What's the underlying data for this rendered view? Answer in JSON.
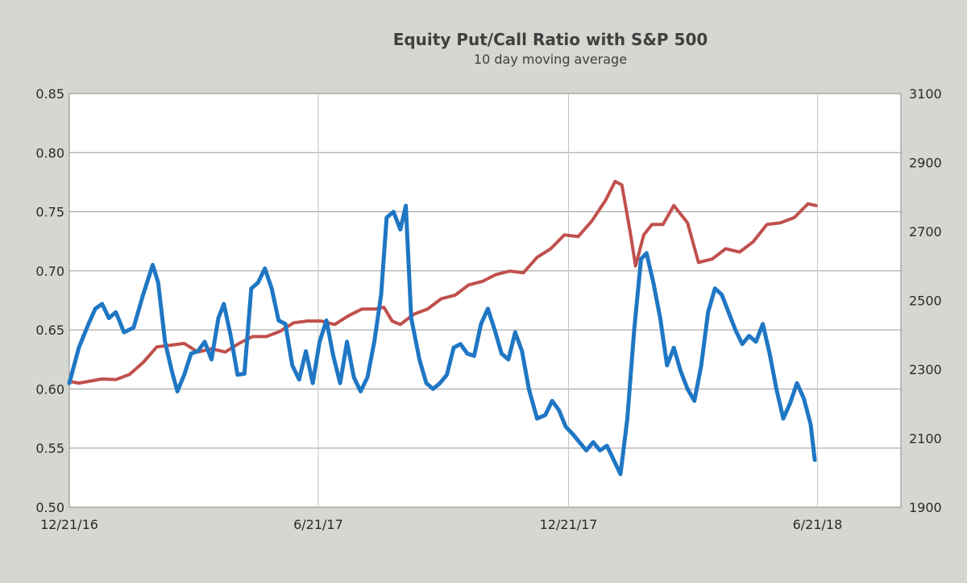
{
  "chart_data": {
    "type": "line",
    "title": "Equity Put/Call Ratio with S&P 500",
    "subtitle": "10 day moving average",
    "x_tick_labels": [
      "12/21/16",
      "6/21/17",
      "12/21/17",
      "6/21/18"
    ],
    "y_left": {
      "min": 0.5,
      "max": 0.85,
      "step": 0.05,
      "tick_labels": [
        "0.50",
        "0.55",
        "0.60",
        "0.65",
        "0.70",
        "0.75",
        "0.80",
        "0.85"
      ]
    },
    "y_right": {
      "min": 1900,
      "max": 3100,
      "step": 200,
      "tick_labels": [
        "1900",
        "2100",
        "2300",
        "2500",
        "2700",
        "2900",
        "3100"
      ]
    },
    "grid": true,
    "legend": "none",
    "series": [
      {
        "axis": "left",
        "color": "#1f77c4",
        "note": "equity put/call ratio",
        "points": [
          [
            "12/21/16",
            0.605
          ],
          [
            "12/28/16",
            0.635
          ],
          [
            "1/4/17",
            0.655
          ],
          [
            "1/9/17",
            0.668
          ],
          [
            "1/14/17",
            0.672
          ],
          [
            "1/19/17",
            0.66
          ],
          [
            "1/24/17",
            0.665
          ],
          [
            "1/30/17",
            0.648
          ],
          [
            "2/6/17",
            0.652
          ],
          [
            "2/13/17",
            0.68
          ],
          [
            "2/20/17",
            0.705
          ],
          [
            "2/24/17",
            0.69
          ],
          [
            "3/1/17",
            0.64
          ],
          [
            "3/6/17",
            0.615
          ],
          [
            "3/10/17",
            0.598
          ],
          [
            "3/15/17",
            0.612
          ],
          [
            "3/20/17",
            0.63
          ],
          [
            "3/25/17",
            0.632
          ],
          [
            "3/30/17",
            0.64
          ],
          [
            "4/4/17",
            0.625
          ],
          [
            "4/9/17",
            0.66
          ],
          [
            "4/13/17",
            0.672
          ],
          [
            "4/18/17",
            0.645
          ],
          [
            "4/23/17",
            0.612
          ],
          [
            "4/28/17",
            0.613
          ],
          [
            "5/3/17",
            0.685
          ],
          [
            "5/8/17",
            0.69
          ],
          [
            "5/13/17",
            0.702
          ],
          [
            "5/18/17",
            0.685
          ],
          [
            "5/23/17",
            0.658
          ],
          [
            "5/28/17",
            0.655
          ],
          [
            "6/2/17",
            0.62
          ],
          [
            "6/7/17",
            0.608
          ],
          [
            "6/12/17",
            0.632
          ],
          [
            "6/17/17",
            0.605
          ],
          [
            "6/22/17",
            0.64
          ],
          [
            "6/27/17",
            0.658
          ],
          [
            "7/2/17",
            0.628
          ],
          [
            "7/7/17",
            0.605
          ],
          [
            "7/12/17",
            0.64
          ],
          [
            "7/17/17",
            0.61
          ],
          [
            "7/22/17",
            0.598
          ],
          [
            "7/27/17",
            0.61
          ],
          [
            "8/1/17",
            0.64
          ],
          [
            "8/6/17",
            0.68
          ],
          [
            "8/10/17",
            0.745
          ],
          [
            "8/15/17",
            0.75
          ],
          [
            "8/20/17",
            0.735
          ],
          [
            "8/24/17",
            0.755
          ],
          [
            "8/28/17",
            0.66
          ],
          [
            "9/3/17",
            0.625
          ],
          [
            "9/8/17",
            0.605
          ],
          [
            "9/13/17",
            0.6
          ],
          [
            "9/18/17",
            0.605
          ],
          [
            "9/23/17",
            0.612
          ],
          [
            "9/28/17",
            0.635
          ],
          [
            "10/3/17",
            0.638
          ],
          [
            "10/8/17",
            0.63
          ],
          [
            "10/13/17",
            0.628
          ],
          [
            "10/18/17",
            0.655
          ],
          [
            "10/23/17",
            0.668
          ],
          [
            "10/28/17",
            0.65
          ],
          [
            "11/2/17",
            0.63
          ],
          [
            "11/7/17",
            0.625
          ],
          [
            "11/12/17",
            0.648
          ],
          [
            "11/17/17",
            0.632
          ],
          [
            "11/22/17",
            0.6
          ],
          [
            "11/28/17",
            0.575
          ],
          [
            "12/4/17",
            0.578
          ],
          [
            "12/9/17",
            0.59
          ],
          [
            "12/14/17",
            0.582
          ],
          [
            "12/19/17",
            0.568
          ],
          [
            "12/24/17",
            0.562
          ],
          [
            "12/29/17",
            0.555
          ],
          [
            "1/3/18",
            0.548
          ],
          [
            "1/8/18",
            0.555
          ],
          [
            "1/13/18",
            0.548
          ],
          [
            "1/18/18",
            0.552
          ],
          [
            "1/23/18",
            0.54
          ],
          [
            "1/28/18",
            0.528
          ],
          [
            "2/2/18",
            0.575
          ],
          [
            "2/7/18",
            0.65
          ],
          [
            "2/12/18",
            0.71
          ],
          [
            "2/16/18",
            0.715
          ],
          [
            "2/21/18",
            0.69
          ],
          [
            "2/26/18",
            0.66
          ],
          [
            "3/3/18",
            0.62
          ],
          [
            "3/8/18",
            0.635
          ],
          [
            "3/13/18",
            0.615
          ],
          [
            "3/18/18",
            0.6
          ],
          [
            "3/23/18",
            0.59
          ],
          [
            "3/28/18",
            0.62
          ],
          [
            "4/2/18",
            0.665
          ],
          [
            "4/7/18",
            0.685
          ],
          [
            "4/12/18",
            0.68
          ],
          [
            "4/17/18",
            0.665
          ],
          [
            "4/22/18",
            0.65
          ],
          [
            "4/27/18",
            0.638
          ],
          [
            "5/2/18",
            0.645
          ],
          [
            "5/7/18",
            0.64
          ],
          [
            "5/12/18",
            0.655
          ],
          [
            "5/17/18",
            0.63
          ],
          [
            "5/22/18",
            0.6
          ],
          [
            "5/27/18",
            0.575
          ],
          [
            "6/1/18",
            0.588
          ],
          [
            "6/6/18",
            0.605
          ],
          [
            "6/11/18",
            0.592
          ],
          [
            "6/16/18",
            0.57
          ],
          [
            "6/19/18",
            0.54
          ]
        ]
      },
      {
        "axis": "right",
        "color": "#c0504d",
        "note": "S&P 500",
        "points": [
          [
            "12/21/16",
            2265
          ],
          [
            "12/28/16",
            2260
          ],
          [
            "1/4/17",
            2265
          ],
          [
            "1/14/17",
            2272
          ],
          [
            "1/24/17",
            2270
          ],
          [
            "2/3/17",
            2285
          ],
          [
            "2/13/17",
            2320
          ],
          [
            "2/23/17",
            2365
          ],
          [
            "3/5/17",
            2370
          ],
          [
            "3/15/17",
            2375
          ],
          [
            "3/25/17",
            2350
          ],
          [
            "4/4/17",
            2360
          ],
          [
            "4/14/17",
            2350
          ],
          [
            "4/24/17",
            2375
          ],
          [
            "5/4/17",
            2395
          ],
          [
            "5/14/17",
            2395
          ],
          [
            "5/24/17",
            2410
          ],
          [
            "6/3/17",
            2435
          ],
          [
            "6/13/17",
            2440
          ],
          [
            "6/23/17",
            2440
          ],
          [
            "7/3/17",
            2430
          ],
          [
            "7/13/17",
            2455
          ],
          [
            "7/23/17",
            2475
          ],
          [
            "8/2/17",
            2475
          ],
          [
            "8/8/17",
            2480
          ],
          [
            "8/14/17",
            2440
          ],
          [
            "8/20/17",
            2430
          ],
          [
            "8/30/17",
            2460
          ],
          [
            "9/9/17",
            2475
          ],
          [
            "9/19/17",
            2505
          ],
          [
            "9/29/17",
            2515
          ],
          [
            "10/9/17",
            2545
          ],
          [
            "10/19/17",
            2555
          ],
          [
            "10/29/17",
            2575
          ],
          [
            "11/8/17",
            2585
          ],
          [
            "11/18/17",
            2580
          ],
          [
            "11/28/17",
            2625
          ],
          [
            "12/8/17",
            2650
          ],
          [
            "12/18/17",
            2690
          ],
          [
            "12/28/17",
            2685
          ],
          [
            "1/7/18",
            2730
          ],
          [
            "1/17/18",
            2790
          ],
          [
            "1/24/18",
            2845
          ],
          [
            "1/29/18",
            2835
          ],
          [
            "2/4/18",
            2700
          ],
          [
            "2/8/18",
            2600
          ],
          [
            "2/14/18",
            2690
          ],
          [
            "2/20/18",
            2720
          ],
          [
            "2/28/18",
            2720
          ],
          [
            "3/8/18",
            2775
          ],
          [
            "3/18/18",
            2725
          ],
          [
            "3/26/18",
            2610
          ],
          [
            "4/5/18",
            2620
          ],
          [
            "4/15/18",
            2650
          ],
          [
            "4/25/18",
            2640
          ],
          [
            "5/5/18",
            2670
          ],
          [
            "5/15/18",
            2720
          ],
          [
            "5/25/18",
            2725
          ],
          [
            "6/4/18",
            2740
          ],
          [
            "6/14/18",
            2780
          ],
          [
            "6/20/18",
            2775
          ]
        ]
      }
    ]
  }
}
